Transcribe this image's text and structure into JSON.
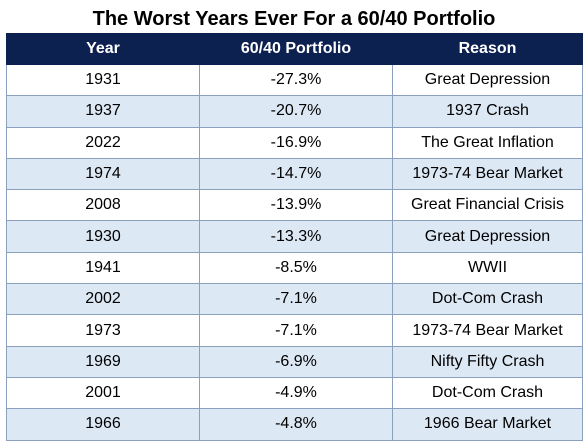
{
  "chart_data": {
    "type": "table",
    "title": "The Worst Years Ever For a 60/40 Portfolio",
    "columns": [
      "Year",
      "60/40 Portfolio",
      "Reason"
    ],
    "rows": [
      {
        "year": "1931",
        "return": "-27.3%",
        "reason": "Great Depression"
      },
      {
        "year": "1937",
        "return": "-20.7%",
        "reason": "1937 Crash"
      },
      {
        "year": "2022",
        "return": "-16.9%",
        "reason": "The Great Inflation"
      },
      {
        "year": "1974",
        "return": "-14.7%",
        "reason": "1973-74 Bear Market"
      },
      {
        "year": "2008",
        "return": "-13.9%",
        "reason": "Great Financial Crisis"
      },
      {
        "year": "1930",
        "return": "-13.3%",
        "reason": "Great Depression"
      },
      {
        "year": "1941",
        "return": "-8.5%",
        "reason": "WWII"
      },
      {
        "year": "2002",
        "return": "-7.1%",
        "reason": "Dot-Com Crash"
      },
      {
        "year": "1973",
        "return": "-7.1%",
        "reason": "1973-74 Bear Market"
      },
      {
        "year": "1969",
        "return": "-6.9%",
        "reason": "Nifty Fifty Crash"
      },
      {
        "year": "2001",
        "return": "-4.9%",
        "reason": "Dot-Com Crash"
      },
      {
        "year": "1966",
        "return": "-4.8%",
        "reason": "1966 Bear Market"
      }
    ],
    "colors": {
      "header_background": "#0d2150",
      "header_text": "#ffffff",
      "alternate_row": "#dde8f5",
      "row": "#ffffff",
      "border": "#8aa0bd"
    }
  }
}
